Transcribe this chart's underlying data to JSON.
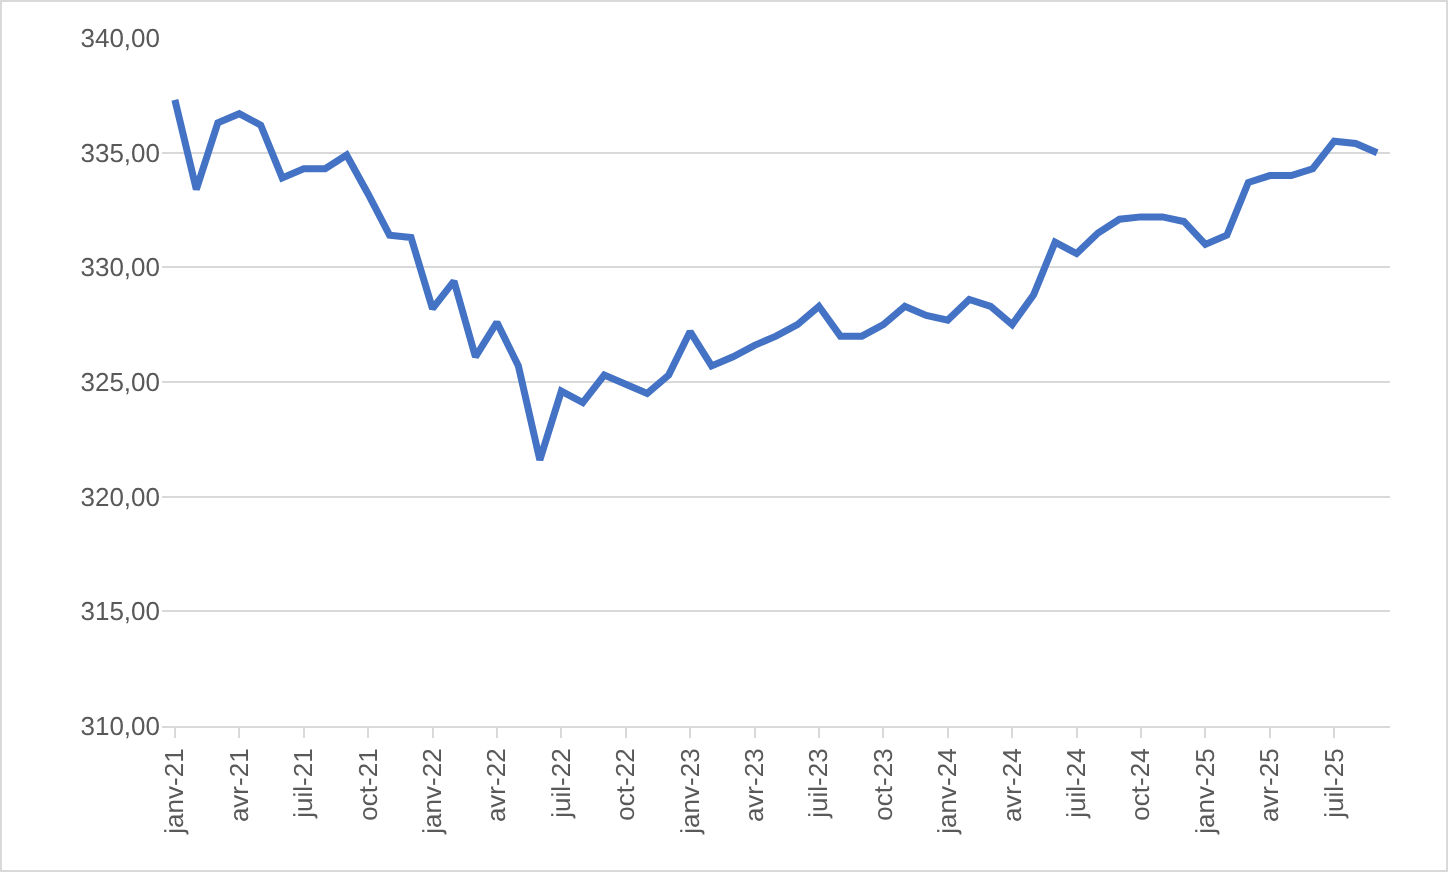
{
  "chart_data": {
    "type": "line",
    "categories": [
      "janv-21",
      null,
      null,
      "avr-21",
      null,
      null,
      "juil-21",
      null,
      null,
      "oct-21",
      null,
      null,
      "janv-22",
      null,
      null,
      "avr-22",
      null,
      null,
      "juil-22",
      null,
      null,
      "oct-22",
      null,
      null,
      "janv-23",
      null,
      null,
      "avr-23",
      null,
      null,
      "juil-23",
      null,
      null,
      "oct-23",
      null,
      null,
      "janv-24",
      null,
      null,
      "avr-24",
      null,
      null,
      "juil-24",
      null,
      null,
      "oct-24",
      null,
      null,
      "janv-25",
      null,
      null,
      "avr-25",
      null,
      null,
      "juil-25",
      null,
      null
    ],
    "series": [
      {
        "color": "#4472c4",
        "values": [
          337.3,
          333.4,
          336.3,
          336.7,
          336.2,
          333.9,
          334.3,
          334.3,
          334.9,
          333.2,
          331.4,
          331.3,
          328.2,
          329.4,
          326.1,
          327.6,
          325.7,
          321.6,
          324.6,
          324.1,
          325.3,
          324.9,
          324.5,
          325.3,
          327.2,
          325.7,
          326.1,
          326.6,
          327.0,
          327.5,
          328.3,
          327.0,
          327.0,
          327.5,
          328.3,
          327.9,
          327.7,
          328.6,
          328.3,
          327.5,
          328.8,
          331.1,
          330.6,
          331.5,
          332.1,
          332.2,
          332.2,
          332.0,
          331.0,
          331.4,
          333.7,
          334.0,
          334.0,
          334.3,
          335.5,
          335.4,
          335.0
        ]
      }
    ],
    "ylim": [
      310,
      340
    ],
    "yticks": [
      {
        "value": 310,
        "label": "310,00"
      },
      {
        "value": 315,
        "label": "315,00"
      },
      {
        "value": 320,
        "label": "320,00"
      },
      {
        "value": 325,
        "label": "325,00"
      },
      {
        "value": 330,
        "label": "330,00"
      },
      {
        "value": 335,
        "label": "335,00"
      },
      {
        "value": 340,
        "label": "340,00"
      }
    ],
    "grid": "y",
    "marker": "none",
    "line_style": "solid"
  }
}
